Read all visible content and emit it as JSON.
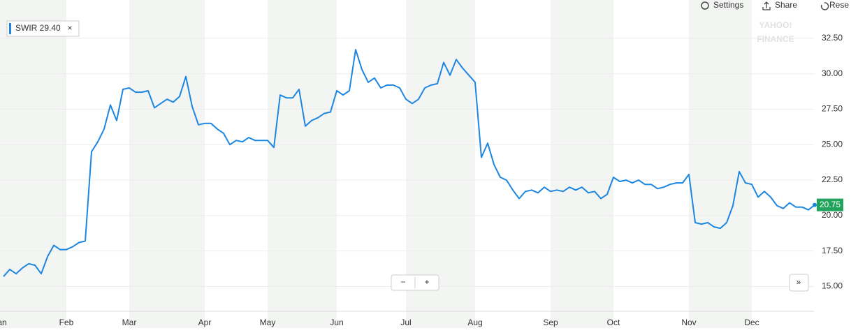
{
  "chart_data": {
    "type": "line",
    "categories": [
      "Jan",
      null,
      null,
      null,
      null,
      null,
      null,
      null,
      null,
      null,
      "Feb",
      null,
      null,
      null,
      null,
      null,
      null,
      null,
      null,
      null,
      "Mar",
      null,
      null,
      null,
      null,
      null,
      null,
      null,
      null,
      null,
      null,
      null,
      "Apr",
      null,
      null,
      null,
      null,
      null,
      null,
      null,
      null,
      null,
      "May",
      null,
      null,
      null,
      null,
      null,
      null,
      null,
      null,
      null,
      null,
      "Jun",
      null,
      null,
      null,
      null,
      null,
      null,
      null,
      null,
      null,
      null,
      "Jul",
      null,
      null,
      null,
      null,
      null,
      null,
      null,
      null,
      null,
      null,
      "Aug",
      null,
      null,
      null,
      null,
      null,
      null,
      null,
      null,
      null,
      null,
      null,
      "Sep",
      null,
      null,
      null,
      null,
      null,
      null,
      null,
      null,
      null,
      "Oct",
      null,
      null,
      null,
      null,
      null,
      null,
      null,
      null,
      null,
      null,
      null,
      "Nov",
      null,
      null,
      null,
      null,
      null,
      null,
      null,
      null,
      null,
      "Dec",
      null,
      null,
      null,
      null,
      null,
      null,
      null,
      null,
      null,
      null
    ],
    "series": [
      {
        "name": "SWIR 29.40",
        "color": "#1c86e0",
        "values": [
          15.7,
          16.2,
          15.9,
          16.3,
          16.6,
          16.5,
          15.9,
          17.1,
          17.9,
          17.6,
          17.6,
          17.8,
          18.1,
          18.2,
          24.5,
          25.2,
          26.1,
          27.8,
          26.7,
          28.9,
          29.0,
          28.7,
          28.7,
          28.8,
          27.6,
          27.9,
          28.2,
          28.0,
          28.4,
          29.8,
          27.7,
          26.4,
          26.5,
          26.5,
          26.1,
          25.8,
          25.0,
          25.3,
          25.2,
          25.5,
          25.3,
          25.3,
          25.3,
          24.8,
          28.5,
          28.3,
          28.3,
          28.9,
          26.3,
          26.7,
          26.9,
          27.2,
          27.3,
          28.8,
          28.5,
          28.8,
          31.7,
          30.3,
          29.4,
          29.7,
          29.0,
          29.2,
          29.2,
          29.0,
          28.2,
          27.9,
          28.2,
          29.0,
          29.2,
          29.3,
          30.8,
          29.9,
          31.0,
          30.4,
          29.9,
          29.4,
          24.1,
          25.1,
          23.6,
          22.7,
          22.5,
          21.8,
          21.2,
          21.7,
          21.8,
          21.6,
          22.0,
          21.7,
          21.8,
          21.7,
          22.0,
          21.8,
          22.0,
          21.6,
          21.7,
          21.2,
          21.5,
          22.7,
          22.4,
          22.5,
          22.3,
          22.5,
          22.2,
          22.2,
          21.9,
          22.0,
          22.2,
          22.3,
          22.3,
          22.9,
          19.5,
          19.4,
          19.5,
          19.2,
          19.1,
          19.5,
          20.7,
          23.1,
          22.3,
          22.2,
          21.3,
          21.7,
          21.3,
          20.7,
          20.5,
          20.9,
          20.6,
          20.6,
          20.4,
          20.75
        ]
      }
    ],
    "last_label": {
      "value": 20.75,
      "label": "20.75"
    },
    "ylim": [
      13.3,
      35.2
    ],
    "yticks": [
      {
        "value": 15,
        "label": "15.00"
      },
      {
        "value": 17.5,
        "label": "17.50"
      },
      {
        "value": 20,
        "label": "20.00"
      },
      {
        "value": 22.5,
        "label": "22.50"
      },
      {
        "value": 25,
        "label": "25.00"
      },
      {
        "value": 27.5,
        "label": "27.50"
      },
      {
        "value": 30,
        "label": "30.00"
      },
      {
        "value": 32.5,
        "label": "32.50"
      }
    ],
    "grid": true,
    "shaded_months": true
  },
  "ui": {
    "settings": "Settings",
    "share": "Share",
    "reset": "Rese",
    "close": "×",
    "logo": "YAHOO!",
    "logo_sub": "FINANCE",
    "zoom_out": "−",
    "zoom_in": "+",
    "more": "»"
  }
}
